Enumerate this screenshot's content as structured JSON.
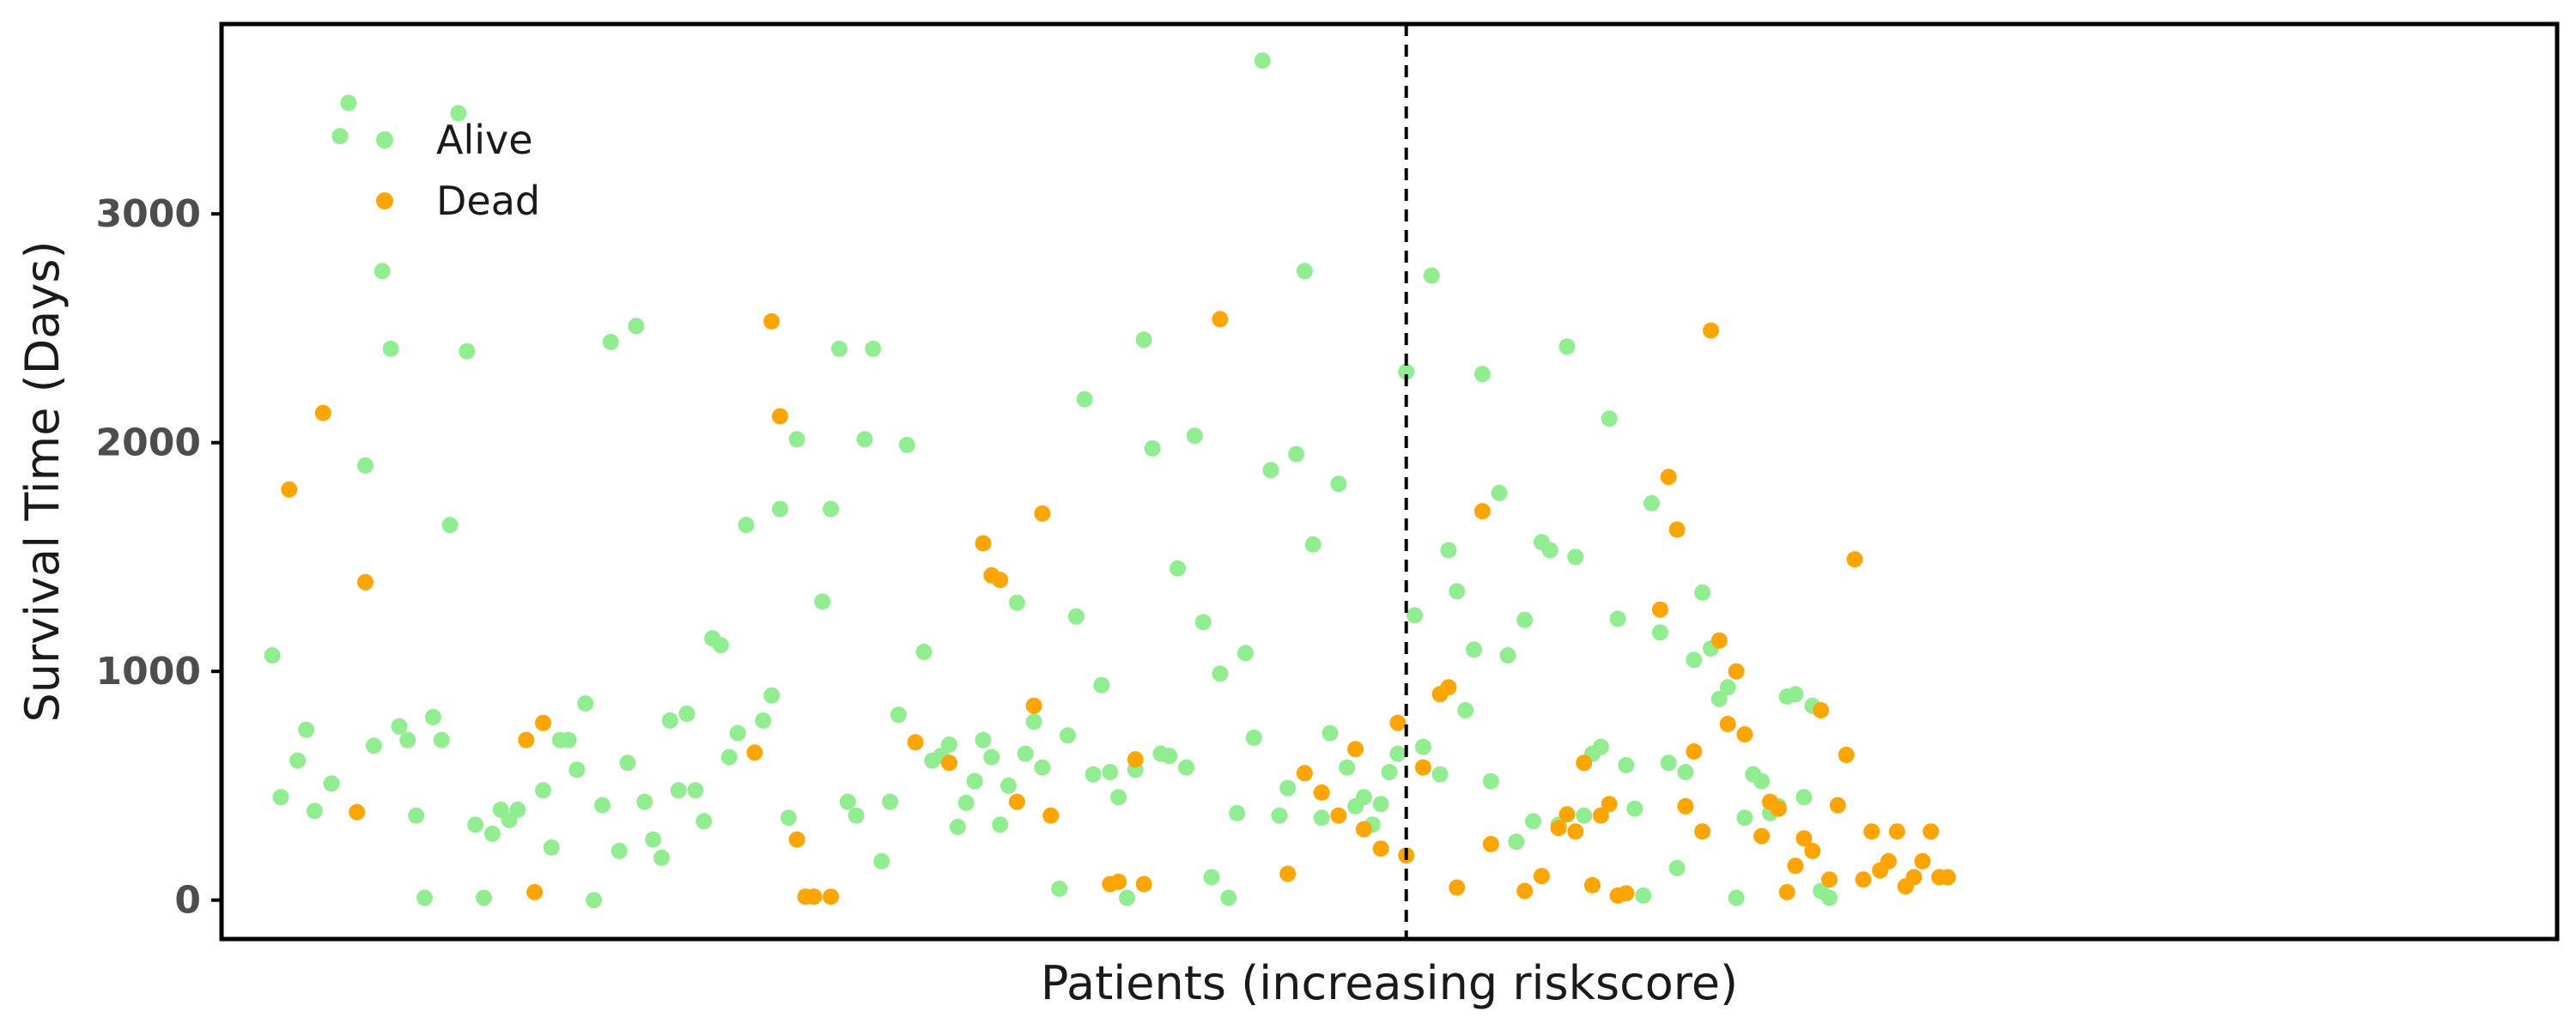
{
  "chart_data": {
    "type": "scatter",
    "title": "",
    "xlabel": "Patients (increasing riskscore)",
    "ylabel": "Survival Time (Days)",
    "xlim": [
      -6,
      270
    ],
    "ylim": [
      -170,
      3830
    ],
    "yticks": [
      0,
      1000,
      2000,
      3000
    ],
    "ytick_labels": [
      "0",
      "1000",
      "2000",
      "3000"
    ],
    "xticks_shown": false,
    "grid": false,
    "legend_position": "upper-left",
    "cutoff_x": 134,
    "cutoff_style": "dashed",
    "series": [
      {
        "name": "Alive",
        "color": "#90ee90",
        "points": [
          [
            0,
            1070
          ],
          [
            1,
            450
          ],
          [
            3,
            610
          ],
          [
            4,
            745
          ],
          [
            5,
            390
          ],
          [
            7,
            510
          ],
          [
            8,
            3340
          ],
          [
            9,
            3485
          ],
          [
            11,
            1900
          ],
          [
            12,
            675
          ],
          [
            13,
            2750
          ],
          [
            14,
            2410
          ],
          [
            15,
            760
          ],
          [
            16,
            700
          ],
          [
            17,
            370
          ],
          [
            18,
            10
          ],
          [
            19,
            800
          ],
          [
            20,
            700
          ],
          [
            21,
            1640
          ],
          [
            22,
            3440
          ],
          [
            23,
            2400
          ],
          [
            24,
            330
          ],
          [
            25,
            10
          ],
          [
            26,
            290
          ],
          [
            27,
            395
          ],
          [
            28,
            350
          ],
          [
            29,
            395
          ],
          [
            32,
            480
          ],
          [
            33,
            230
          ],
          [
            34,
            700
          ],
          [
            35,
            700
          ],
          [
            36,
            570
          ],
          [
            37,
            860
          ],
          [
            38,
            0
          ],
          [
            39,
            415
          ],
          [
            40,
            2440
          ],
          [
            41,
            215
          ],
          [
            42,
            600
          ],
          [
            43,
            2510
          ],
          [
            44,
            430
          ],
          [
            45,
            265
          ],
          [
            46,
            185
          ],
          [
            47,
            785
          ],
          [
            48,
            480
          ],
          [
            49,
            815
          ],
          [
            50,
            480
          ],
          [
            51,
            345
          ],
          [
            52,
            1145
          ],
          [
            53,
            1115
          ],
          [
            54,
            625
          ],
          [
            55,
            730
          ],
          [
            56,
            1640
          ],
          [
            58,
            785
          ],
          [
            59,
            895
          ],
          [
            60,
            1710
          ],
          [
            61,
            360
          ],
          [
            62,
            2015
          ],
          [
            65,
            1305
          ],
          [
            66,
            1710
          ],
          [
            67,
            2410
          ],
          [
            68,
            430
          ],
          [
            69,
            370
          ],
          [
            70,
            2015
          ],
          [
            71,
            2410
          ],
          [
            72,
            170
          ],
          [
            73,
            430
          ],
          [
            74,
            810
          ],
          [
            75,
            1990
          ],
          [
            77,
            1085
          ],
          [
            78,
            610
          ],
          [
            79,
            630
          ],
          [
            80,
            680
          ],
          [
            81,
            320
          ],
          [
            82,
            425
          ],
          [
            83,
            520
          ],
          [
            84,
            700
          ],
          [
            85,
            625
          ],
          [
            86,
            330
          ],
          [
            87,
            500
          ],
          [
            88,
            1300
          ],
          [
            89,
            640
          ],
          [
            90,
            780
          ],
          [
            91,
            580
          ],
          [
            93,
            50
          ],
          [
            94,
            720
          ],
          [
            95,
            1240
          ],
          [
            96,
            2190
          ],
          [
            97,
            550
          ],
          [
            98,
            940
          ],
          [
            99,
            560
          ],
          [
            100,
            450
          ],
          [
            101,
            10
          ],
          [
            102,
            570
          ],
          [
            103,
            2450
          ],
          [
            104,
            1975
          ],
          [
            105,
            640
          ],
          [
            106,
            630
          ],
          [
            107,
            1450
          ],
          [
            108,
            580
          ],
          [
            109,
            2030
          ],
          [
            110,
            1215
          ],
          [
            111,
            100
          ],
          [
            112,
            990
          ],
          [
            113,
            10
          ],
          [
            114,
            380
          ],
          [
            115,
            1080
          ],
          [
            116,
            710
          ],
          [
            117,
            3670
          ],
          [
            118,
            1880
          ],
          [
            119,
            370
          ],
          [
            120,
            490
          ],
          [
            121,
            1950
          ],
          [
            122,
            2750
          ],
          [
            123,
            1555
          ],
          [
            124,
            360
          ],
          [
            125,
            730
          ],
          [
            126,
            1820
          ],
          [
            127,
            580
          ],
          [
            128,
            410
          ],
          [
            129,
            450
          ],
          [
            130,
            330
          ],
          [
            131,
            420
          ],
          [
            132,
            560
          ],
          [
            133,
            640
          ],
          [
            134,
            2310
          ],
          [
            135,
            1245
          ],
          [
            136,
            670
          ],
          [
            137,
            2730
          ],
          [
            138,
            550
          ],
          [
            139,
            1530
          ],
          [
            140,
            1350
          ],
          [
            141,
            830
          ],
          [
            142,
            1095
          ],
          [
            143,
            2300
          ],
          [
            144,
            520
          ],
          [
            145,
            1780
          ],
          [
            146,
            1070
          ],
          [
            147,
            255
          ],
          [
            148,
            1225
          ],
          [
            149,
            345
          ],
          [
            150,
            1565
          ],
          [
            151,
            1530
          ],
          [
            152,
            330
          ],
          [
            153,
            2420
          ],
          [
            154,
            1500
          ],
          [
            155,
            370
          ],
          [
            156,
            640
          ],
          [
            157,
            670
          ],
          [
            158,
            2105
          ],
          [
            159,
            1230
          ],
          [
            160,
            590
          ],
          [
            161,
            400
          ],
          [
            162,
            20
          ],
          [
            163,
            1735
          ],
          [
            164,
            1170
          ],
          [
            165,
            600
          ],
          [
            166,
            140
          ],
          [
            167,
            560
          ],
          [
            168,
            1050
          ],
          [
            169,
            1345
          ],
          [
            170,
            1100
          ],
          [
            171,
            880
          ],
          [
            172,
            930
          ],
          [
            173,
            10
          ],
          [
            174,
            360
          ],
          [
            175,
            550
          ],
          [
            176,
            520
          ],
          [
            177,
            380
          ],
          [
            178,
            410
          ],
          [
            179,
            890
          ],
          [
            180,
            900
          ],
          [
            181,
            450
          ],
          [
            182,
            850
          ],
          [
            183,
            40
          ],
          [
            184,
            10
          ]
        ]
      },
      {
        "name": "Dead",
        "color": "#ffa500",
        "points": [
          [
            2,
            1795
          ],
          [
            6,
            2130
          ],
          [
            10,
            385
          ],
          [
            11,
            1390
          ],
          [
            30,
            700
          ],
          [
            31,
            35
          ],
          [
            32,
            775
          ],
          [
            57,
            645
          ],
          [
            59,
            2530
          ],
          [
            60,
            2115
          ],
          [
            62,
            265
          ],
          [
            63,
            15
          ],
          [
            64,
            15
          ],
          [
            66,
            15
          ],
          [
            76,
            690
          ],
          [
            80,
            600
          ],
          [
            84,
            1560
          ],
          [
            85,
            1420
          ],
          [
            86,
            1400
          ],
          [
            88,
            430
          ],
          [
            90,
            850
          ],
          [
            91,
            1690
          ],
          [
            92,
            370
          ],
          [
            99,
            70
          ],
          [
            100,
            80
          ],
          [
            102,
            615
          ],
          [
            103,
            70
          ],
          [
            112,
            2540
          ],
          [
            120,
            115
          ],
          [
            122,
            555
          ],
          [
            124,
            470
          ],
          [
            126,
            370
          ],
          [
            128,
            660
          ],
          [
            129,
            310
          ],
          [
            131,
            225
          ],
          [
            133,
            775
          ],
          [
            134,
            195
          ],
          [
            136,
            580
          ],
          [
            138,
            900
          ],
          [
            139,
            930
          ],
          [
            140,
            55
          ],
          [
            143,
            1700
          ],
          [
            144,
            245
          ],
          [
            148,
            40
          ],
          [
            150,
            105
          ],
          [
            152,
            315
          ],
          [
            153,
            375
          ],
          [
            154,
            300
          ],
          [
            155,
            600
          ],
          [
            156,
            65
          ],
          [
            157,
            370
          ],
          [
            158,
            420
          ],
          [
            159,
            20
          ],
          [
            160,
            30
          ],
          [
            164,
            1270
          ],
          [
            165,
            1850
          ],
          [
            166,
            1620
          ],
          [
            167,
            410
          ],
          [
            168,
            650
          ],
          [
            169,
            300
          ],
          [
            170,
            2490
          ],
          [
            171,
            1135
          ],
          [
            172,
            770
          ],
          [
            173,
            1000
          ],
          [
            174,
            725
          ],
          [
            176,
            280
          ],
          [
            177,
            430
          ],
          [
            178,
            400
          ],
          [
            179,
            35
          ],
          [
            180,
            150
          ],
          [
            181,
            270
          ],
          [
            182,
            215
          ],
          [
            183,
            830
          ],
          [
            184,
            90
          ],
          [
            185,
            415
          ],
          [
            186,
            635
          ],
          [
            187,
            1490
          ],
          [
            188,
            90
          ],
          [
            189,
            300
          ],
          [
            190,
            130
          ],
          [
            191,
            170
          ],
          [
            192,
            300
          ],
          [
            193,
            60
          ],
          [
            194,
            100
          ],
          [
            195,
            170
          ],
          [
            196,
            300
          ],
          [
            197,
            100
          ],
          [
            198,
            100
          ]
        ]
      }
    ]
  }
}
